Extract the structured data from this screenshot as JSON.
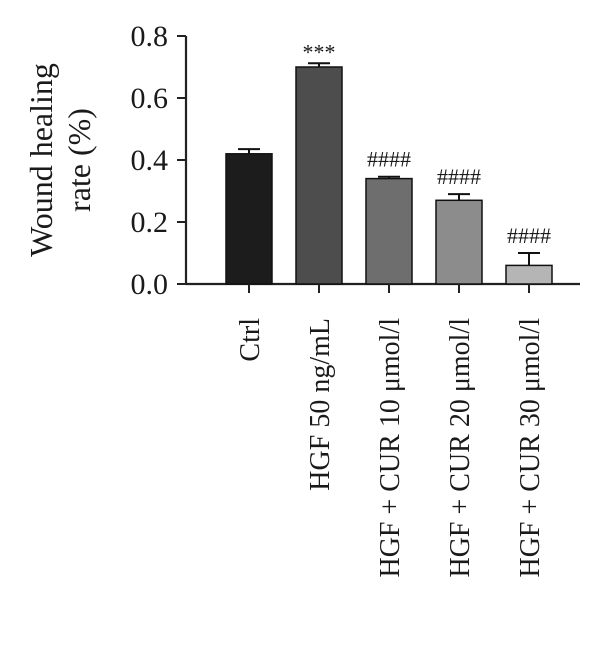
{
  "chart_data": {
    "type": "bar",
    "title": "",
    "ylabel": [
      "Wound healing",
      "rate (%)"
    ],
    "xlabel": "",
    "ylim": [
      0,
      0.8
    ],
    "yticks": [
      "0.0",
      "0.2",
      "0.4",
      "0.6",
      "0.8"
    ],
    "categories": [
      "Ctrl",
      "HGF 50 ng/mL",
      "HGF + CUR 10 μmol/l",
      "HGF + CUR 20 μmol/l",
      "HGF + CUR 30 μmol/l"
    ],
    "values": [
      0.42,
      0.7,
      0.34,
      0.27,
      0.06
    ],
    "errors": [
      0.015,
      0.012,
      0.006,
      0.02,
      0.04
    ],
    "annotations": [
      "",
      "***",
      "####",
      "####",
      "####"
    ],
    "colors": [
      "#1c1c1c",
      "#4d4d4d",
      "#6e6e6e",
      "#8c8c8c",
      "#b5b5b5"
    ],
    "grid": false,
    "legend": "none"
  }
}
